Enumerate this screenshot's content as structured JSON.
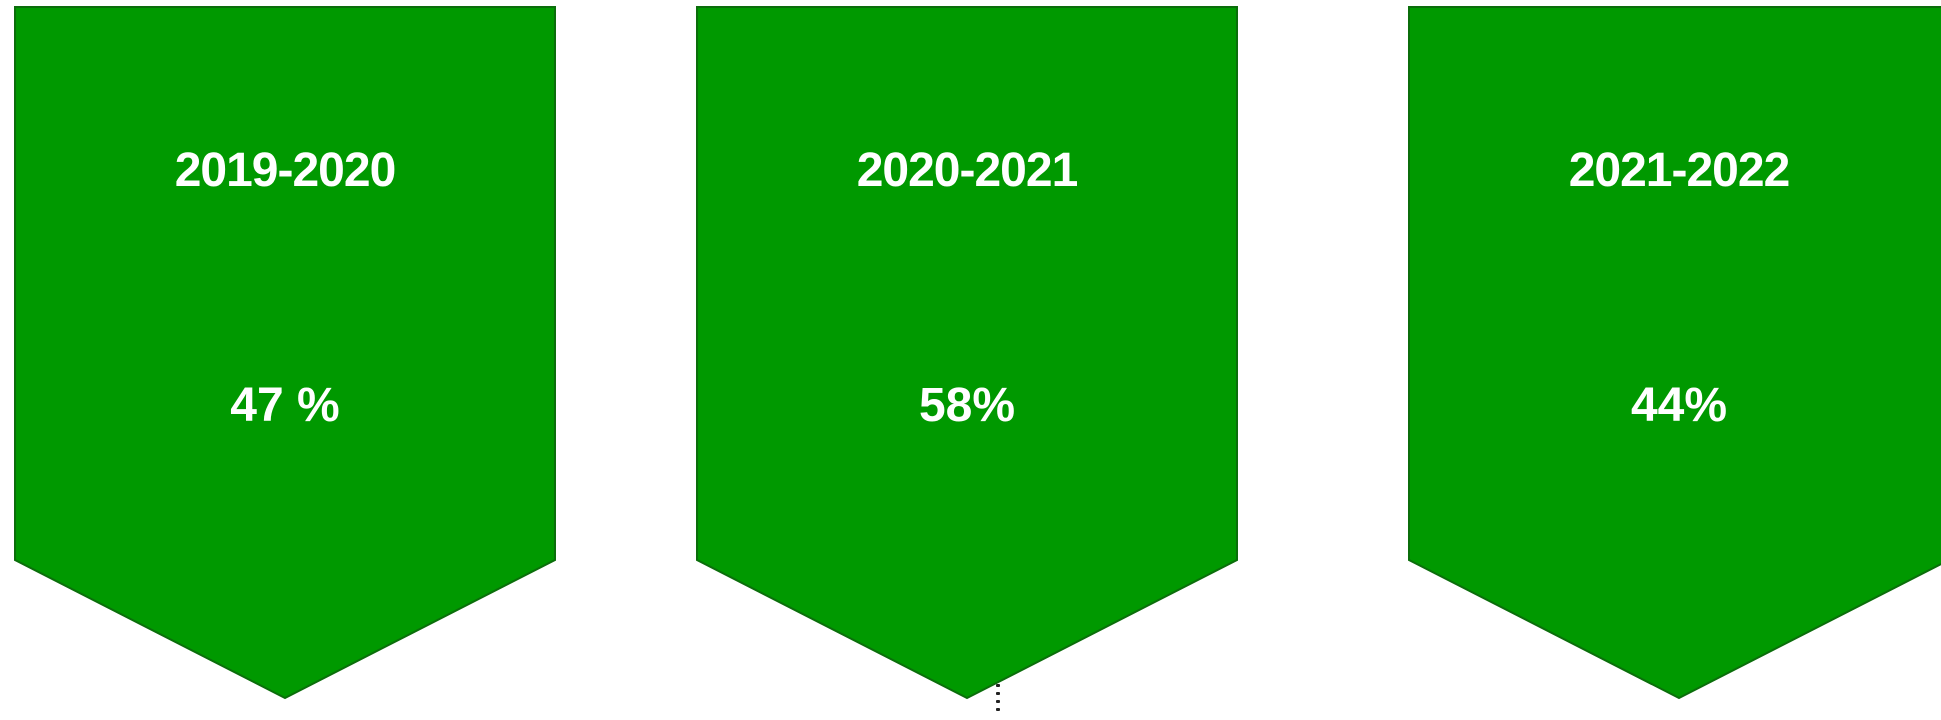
{
  "colors": {
    "chevron_fill": "#009900",
    "chevron_stroke": "#0b6e0b",
    "text": "#ffffff"
  },
  "cards": [
    {
      "year": "2019-2020",
      "value": "47 %"
    },
    {
      "year": "2020-2021",
      "value": "58%"
    },
    {
      "year": "2021-2022",
      "value": "44%"
    }
  ]
}
